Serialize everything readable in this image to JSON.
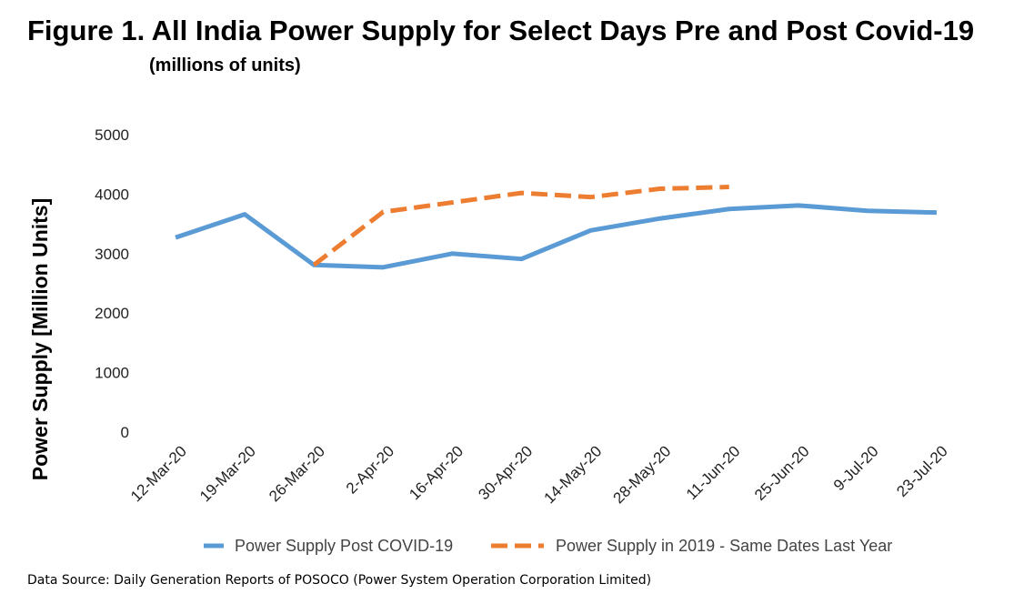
{
  "figure": {
    "title": "Figure 1. All India Power Supply for Select Days Pre and Post Covid-19",
    "subtitle": "(millions of units)",
    "source": "Data Source: Daily Generation Reports of POSOCO (Power System Operation Corporation Limited)"
  },
  "chart_data": {
    "type": "line",
    "categories": [
      "12-Mar-20",
      "19-Mar-20",
      "26-Mar-20",
      "2-Apr-20",
      "16-Apr-20",
      "30-Apr-20",
      "14-May-20",
      "28-May-20",
      "11-Jun-20",
      "25-Jun-20",
      "9-Jul-20",
      "23-Jul-20"
    ],
    "ylabel": "Power Supply [Million Units]",
    "xlabel": "",
    "ylim": [
      0,
      5000
    ],
    "yticks": [
      "0",
      "1000",
      "2000",
      "3000",
      "4000",
      "5000"
    ],
    "grid": false,
    "legend_position": "bottom",
    "series": [
      {
        "name": "Power Supply Post COVID-19",
        "color": "#5b9bd5",
        "style": "solid",
        "values": [
          3270,
          3660,
          2810,
          2770,
          3000,
          2910,
          3390,
          3590,
          3750,
          3810,
          3720,
          3690
        ]
      },
      {
        "name": "Power Supply in 2019 - Same Dates Last Year",
        "color": "#ed7d31",
        "style": "dashed",
        "values": [
          null,
          null,
          2810,
          3700,
          3860,
          4020,
          3950,
          4090,
          4120,
          null,
          null,
          null
        ]
      }
    ]
  }
}
